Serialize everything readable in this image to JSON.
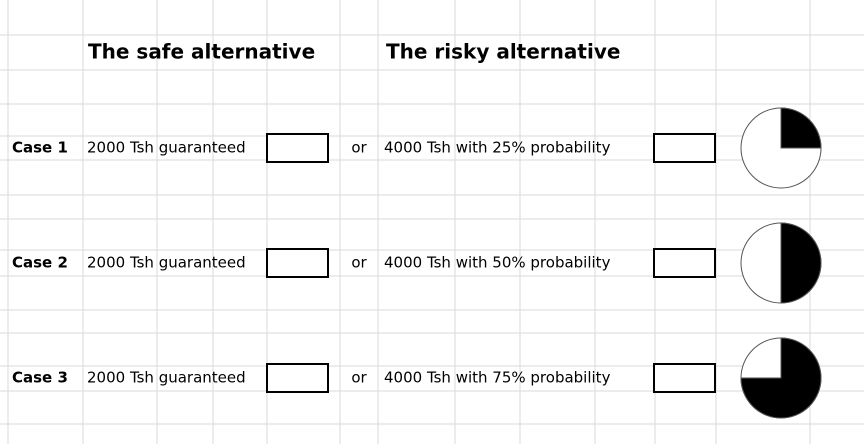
{
  "header": {
    "safe_title": "The safe alternative",
    "risky_title": "The risky alternative"
  },
  "or_label": "or",
  "cases": [
    {
      "label": "Case 1",
      "safe": "2000 Tsh guaranteed",
      "risky": "4000 Tsh with 25% probability",
      "probability": 25
    },
    {
      "label": "Case 2",
      "safe": "2000 Tsh guaranteed",
      "risky": "4000 Tsh with 50% probability",
      "probability": 50
    },
    {
      "label": "Case 3",
      "safe": "2000 Tsh guaranteed",
      "risky": "4000 Tsh with 75% probability",
      "probability": 75
    }
  ]
}
